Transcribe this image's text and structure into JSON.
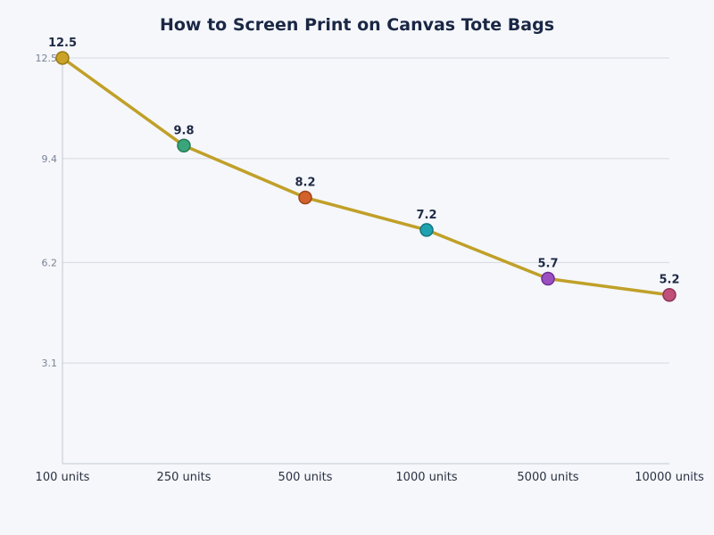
{
  "chart_data": {
    "type": "line",
    "title": "How to Screen Print on Canvas Tote Bags",
    "xlabel": "",
    "ylabel": "",
    "categories": [
      "100 units",
      "250 units",
      "500 units",
      "1000 units",
      "5000 units",
      "10000 units"
    ],
    "values": [
      12.5,
      9.8,
      8.2,
      7.2,
      5.7,
      5.2
    ],
    "data_labels": [
      "12.5",
      "9.8",
      "8.2",
      "7.2",
      "5.7",
      "5.2"
    ],
    "ylim": [
      0,
      12.5
    ],
    "yticks": [
      3.1,
      6.2,
      9.4,
      12.5
    ],
    "ytick_labels": [
      "3.1",
      "6.2",
      "9.4",
      "12.5"
    ],
    "grid": "horizontal",
    "legend": "none",
    "line_color": "#c0a028",
    "point_colors": [
      "#c9a227",
      "#3aa57a",
      "#d2622a",
      "#1fa2b0",
      "#9b4fc0",
      "#c0507a"
    ],
    "point_stroke_colors": [
      "#9a7a14",
      "#237a55",
      "#9e4418",
      "#137580",
      "#6e2f92",
      "#8e3458"
    ]
  }
}
